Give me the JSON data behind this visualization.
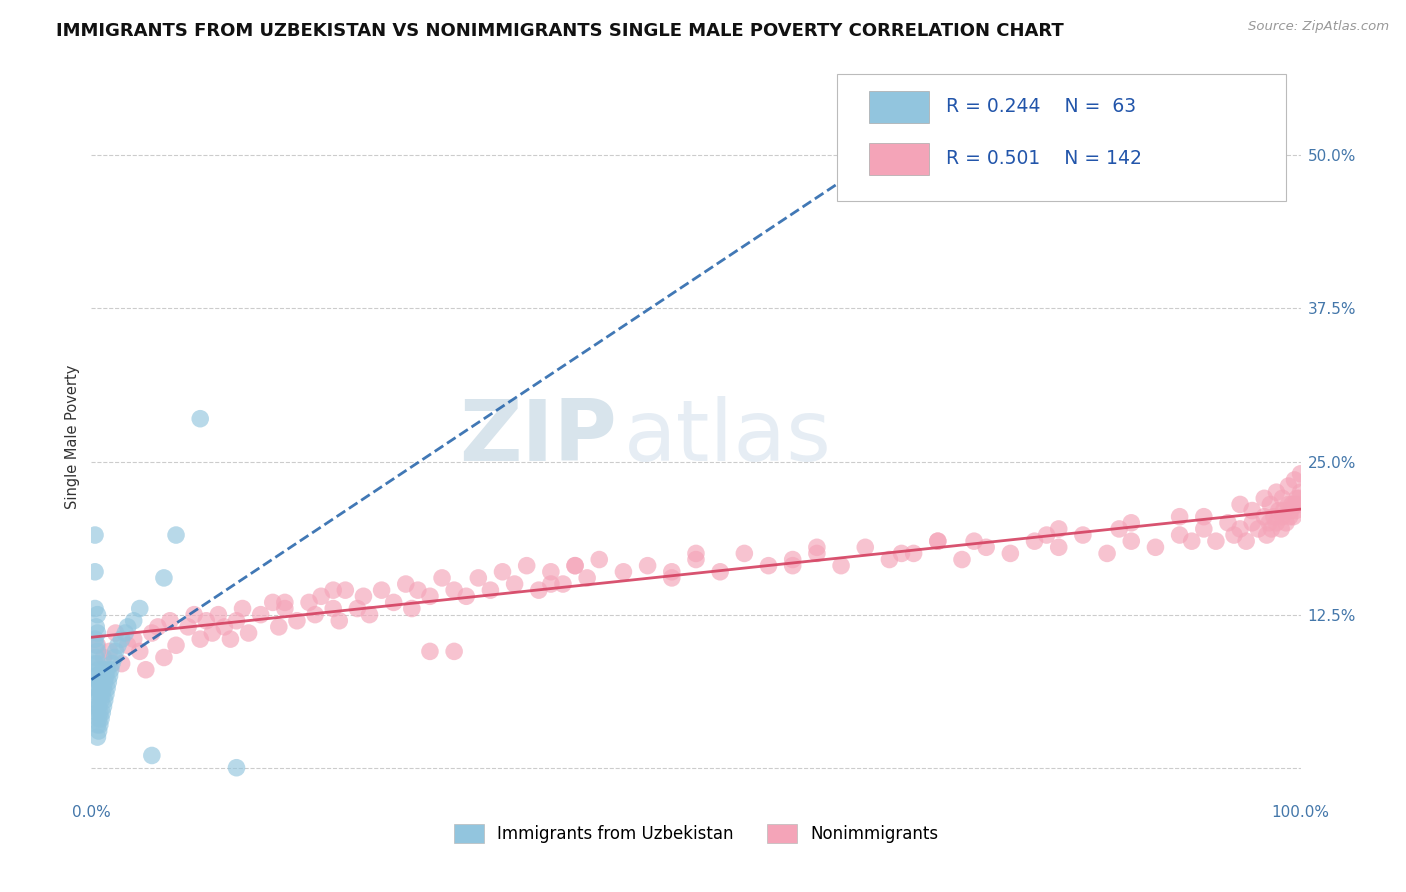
{
  "title": "IMMIGRANTS FROM UZBEKISTAN VS NONIMMIGRANTS SINGLE MALE POVERTY CORRELATION CHART",
  "source": "Source: ZipAtlas.com",
  "ylabel": "Single Male Poverty",
  "x_min": 0.0,
  "x_max": 1.0,
  "y_min": -0.025,
  "y_max": 0.565,
  "x_ticks": [
    0.0,
    0.25,
    0.5,
    0.75,
    1.0
  ],
  "x_tick_labels": [
    "0.0%",
    "",
    "",
    "",
    "100.0%"
  ],
  "y_tick_positions": [
    0.0,
    0.125,
    0.25,
    0.375,
    0.5
  ],
  "y_tick_labels": [
    "",
    "12.5%",
    "25.0%",
    "37.5%",
    "50.0%"
  ],
  "blue_R": 0.244,
  "blue_N": 63,
  "pink_R": 0.501,
  "pink_N": 142,
  "blue_color": "#92C5DE",
  "pink_color": "#F4A4B8",
  "blue_line_color": "#2060A8",
  "pink_line_color": "#D44060",
  "legend_blue_label": "Immigrants from Uzbekistan",
  "legend_pink_label": "Nonimmigrants",
  "watermark": "ZIPatlas",
  "blue_scatter_x": [
    0.003,
    0.003,
    0.003,
    0.003,
    0.003,
    0.004,
    0.004,
    0.004,
    0.004,
    0.004,
    0.004,
    0.005,
    0.005,
    0.005,
    0.005,
    0.005,
    0.005,
    0.005,
    0.005,
    0.005,
    0.005,
    0.006,
    0.006,
    0.006,
    0.006,
    0.006,
    0.006,
    0.007,
    0.007,
    0.007,
    0.007,
    0.008,
    0.008,
    0.008,
    0.009,
    0.009,
    0.009,
    0.01,
    0.01,
    0.01,
    0.011,
    0.011,
    0.012,
    0.012,
    0.013,
    0.013,
    0.014,
    0.015,
    0.016,
    0.017,
    0.019,
    0.02,
    0.022,
    0.025,
    0.028,
    0.03,
    0.035,
    0.04,
    0.05,
    0.06,
    0.07,
    0.09,
    0.12
  ],
  "blue_scatter_y": [
    0.085,
    0.105,
    0.13,
    0.16,
    0.19,
    0.05,
    0.065,
    0.075,
    0.09,
    0.1,
    0.115,
    0.025,
    0.035,
    0.045,
    0.055,
    0.065,
    0.075,
    0.085,
    0.095,
    0.11,
    0.125,
    0.03,
    0.04,
    0.05,
    0.06,
    0.07,
    0.08,
    0.035,
    0.045,
    0.06,
    0.07,
    0.04,
    0.055,
    0.065,
    0.045,
    0.06,
    0.075,
    0.05,
    0.065,
    0.08,
    0.055,
    0.07,
    0.06,
    0.075,
    0.065,
    0.08,
    0.07,
    0.075,
    0.08,
    0.085,
    0.09,
    0.095,
    0.1,
    0.105,
    0.11,
    0.115,
    0.12,
    0.13,
    0.01,
    0.155,
    0.19,
    0.285,
    0.0
  ],
  "pink_scatter_x": [
    0.005,
    0.01,
    0.015,
    0.02,
    0.025,
    0.03,
    0.035,
    0.04,
    0.05,
    0.055,
    0.06,
    0.065,
    0.07,
    0.08,
    0.085,
    0.09,
    0.095,
    0.1,
    0.105,
    0.11,
    0.115,
    0.12,
    0.125,
    0.13,
    0.14,
    0.15,
    0.155,
    0.16,
    0.17,
    0.18,
    0.185,
    0.19,
    0.2,
    0.205,
    0.21,
    0.22,
    0.225,
    0.23,
    0.24,
    0.25,
    0.26,
    0.265,
    0.27,
    0.28,
    0.29,
    0.3,
    0.31,
    0.32,
    0.33,
    0.34,
    0.35,
    0.36,
    0.37,
    0.38,
    0.39,
    0.4,
    0.41,
    0.42,
    0.44,
    0.46,
    0.48,
    0.5,
    0.52,
    0.54,
    0.56,
    0.58,
    0.6,
    0.62,
    0.64,
    0.66,
    0.68,
    0.7,
    0.72,
    0.74,
    0.76,
    0.78,
    0.8,
    0.82,
    0.84,
    0.86,
    0.88,
    0.9,
    0.91,
    0.92,
    0.93,
    0.94,
    0.945,
    0.95,
    0.955,
    0.96,
    0.965,
    0.97,
    0.972,
    0.974,
    0.976,
    0.978,
    0.98,
    0.982,
    0.984,
    0.985,
    0.986,
    0.988,
    0.99,
    0.991,
    0.992,
    0.993,
    0.994,
    0.995,
    0.996,
    0.997,
    0.998,
    0.999,
    1.0,
    0.2,
    0.3,
    0.4,
    0.5,
    0.6,
    0.7,
    0.8,
    0.85,
    0.9,
    0.95,
    0.96,
    0.97,
    0.975,
    0.98,
    0.985,
    0.99,
    0.995,
    1.0,
    0.045,
    0.16,
    0.28,
    0.38,
    0.48,
    0.58,
    0.67,
    0.73,
    0.79,
    0.86,
    0.92
  ],
  "pink_scatter_y": [
    0.1,
    0.09,
    0.095,
    0.11,
    0.085,
    0.1,
    0.105,
    0.095,
    0.11,
    0.115,
    0.09,
    0.12,
    0.1,
    0.115,
    0.125,
    0.105,
    0.12,
    0.11,
    0.125,
    0.115,
    0.105,
    0.12,
    0.13,
    0.11,
    0.125,
    0.135,
    0.115,
    0.13,
    0.12,
    0.135,
    0.125,
    0.14,
    0.13,
    0.12,
    0.145,
    0.13,
    0.14,
    0.125,
    0.145,
    0.135,
    0.15,
    0.13,
    0.145,
    0.14,
    0.155,
    0.095,
    0.14,
    0.155,
    0.145,
    0.16,
    0.15,
    0.165,
    0.145,
    0.16,
    0.15,
    0.165,
    0.155,
    0.17,
    0.16,
    0.165,
    0.155,
    0.17,
    0.16,
    0.175,
    0.165,
    0.17,
    0.175,
    0.165,
    0.18,
    0.17,
    0.175,
    0.185,
    0.17,
    0.18,
    0.175,
    0.185,
    0.18,
    0.19,
    0.175,
    0.185,
    0.18,
    0.19,
    0.185,
    0.195,
    0.185,
    0.2,
    0.19,
    0.195,
    0.185,
    0.2,
    0.195,
    0.205,
    0.19,
    0.2,
    0.195,
    0.205,
    0.2,
    0.21,
    0.195,
    0.205,
    0.21,
    0.2,
    0.215,
    0.205,
    0.21,
    0.215,
    0.205,
    0.215,
    0.21,
    0.22,
    0.215,
    0.22,
    0.225,
    0.145,
    0.145,
    0.165,
    0.175,
    0.18,
    0.185,
    0.195,
    0.195,
    0.205,
    0.215,
    0.21,
    0.22,
    0.215,
    0.225,
    0.22,
    0.23,
    0.235,
    0.24,
    0.08,
    0.135,
    0.095,
    0.15,
    0.16,
    0.165,
    0.175,
    0.185,
    0.19,
    0.2,
    0.205
  ]
}
